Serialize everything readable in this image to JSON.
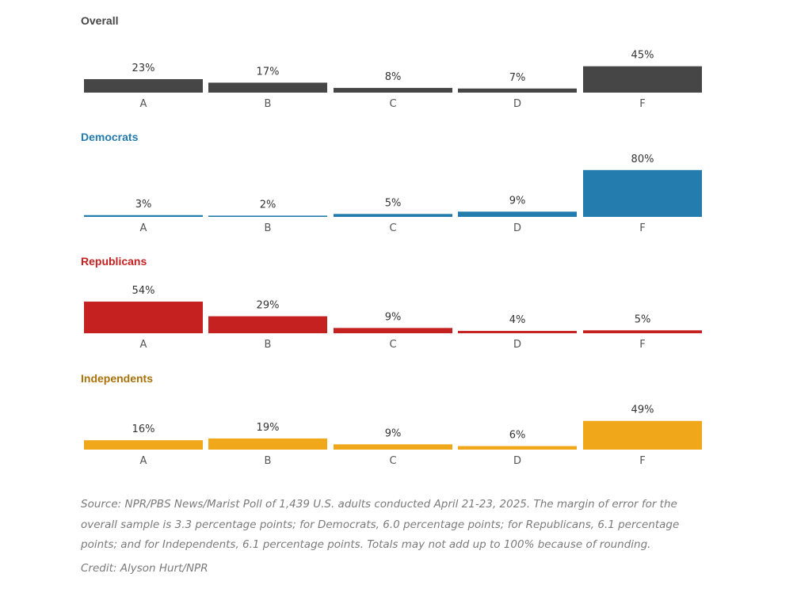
{
  "chart_data": [
    {
      "type": "bar",
      "title": "Overall",
      "color": "#464646",
      "categories": [
        "A",
        "B",
        "C",
        "D",
        "F"
      ],
      "values": [
        23,
        17,
        8,
        7,
        45
      ],
      "value_labels": [
        "23%",
        "17%",
        "8%",
        "7%",
        "45%"
      ],
      "ylim": [
        0,
        100
      ],
      "xlabel": "",
      "ylabel": ""
    },
    {
      "type": "bar",
      "title": "Democrats",
      "color": "#237bae",
      "categories": [
        "A",
        "B",
        "C",
        "D",
        "F"
      ],
      "values": [
        3,
        2,
        5,
        9,
        80
      ],
      "value_labels": [
        "3%",
        "2%",
        "5%",
        "9%",
        "80%"
      ],
      "ylim": [
        0,
        100
      ],
      "xlabel": "",
      "ylabel": ""
    },
    {
      "type": "bar",
      "title": "Republicans",
      "color": "#c52121",
      "categories": [
        "A",
        "B",
        "C",
        "D",
        "F"
      ],
      "values": [
        54,
        29,
        9,
        4,
        5
      ],
      "value_labels": [
        "54%",
        "29%",
        "9%",
        "4%",
        "5%"
      ],
      "ylim": [
        0,
        100
      ],
      "xlabel": "",
      "ylabel": ""
    },
    {
      "type": "bar",
      "title": "Independents",
      "color": "#f0a81a",
      "title_color": "#a9720a",
      "categories": [
        "A",
        "B",
        "C",
        "D",
        "F"
      ],
      "values": [
        16,
        19,
        9,
        6,
        49
      ],
      "value_labels": [
        "16%",
        "19%",
        "9%",
        "6%",
        "49%"
      ],
      "ylim": [
        0,
        100
      ],
      "xlabel": "",
      "ylabel": ""
    }
  ],
  "footer": {
    "source": "Source: NPR/PBS News/Marist Poll of 1,439 U.S. adults conducted April 21-23, 2025. The margin of error for the overall sample is 3.3 percentage points; for Democrats, 6.0 percentage points; for Republicans, 6.1 percentage points; and for Independents, 6.1 percentage points. Totals may not add up to 100% because of rounding.",
    "credit": "Credit: Alyson Hurt/NPR"
  }
}
